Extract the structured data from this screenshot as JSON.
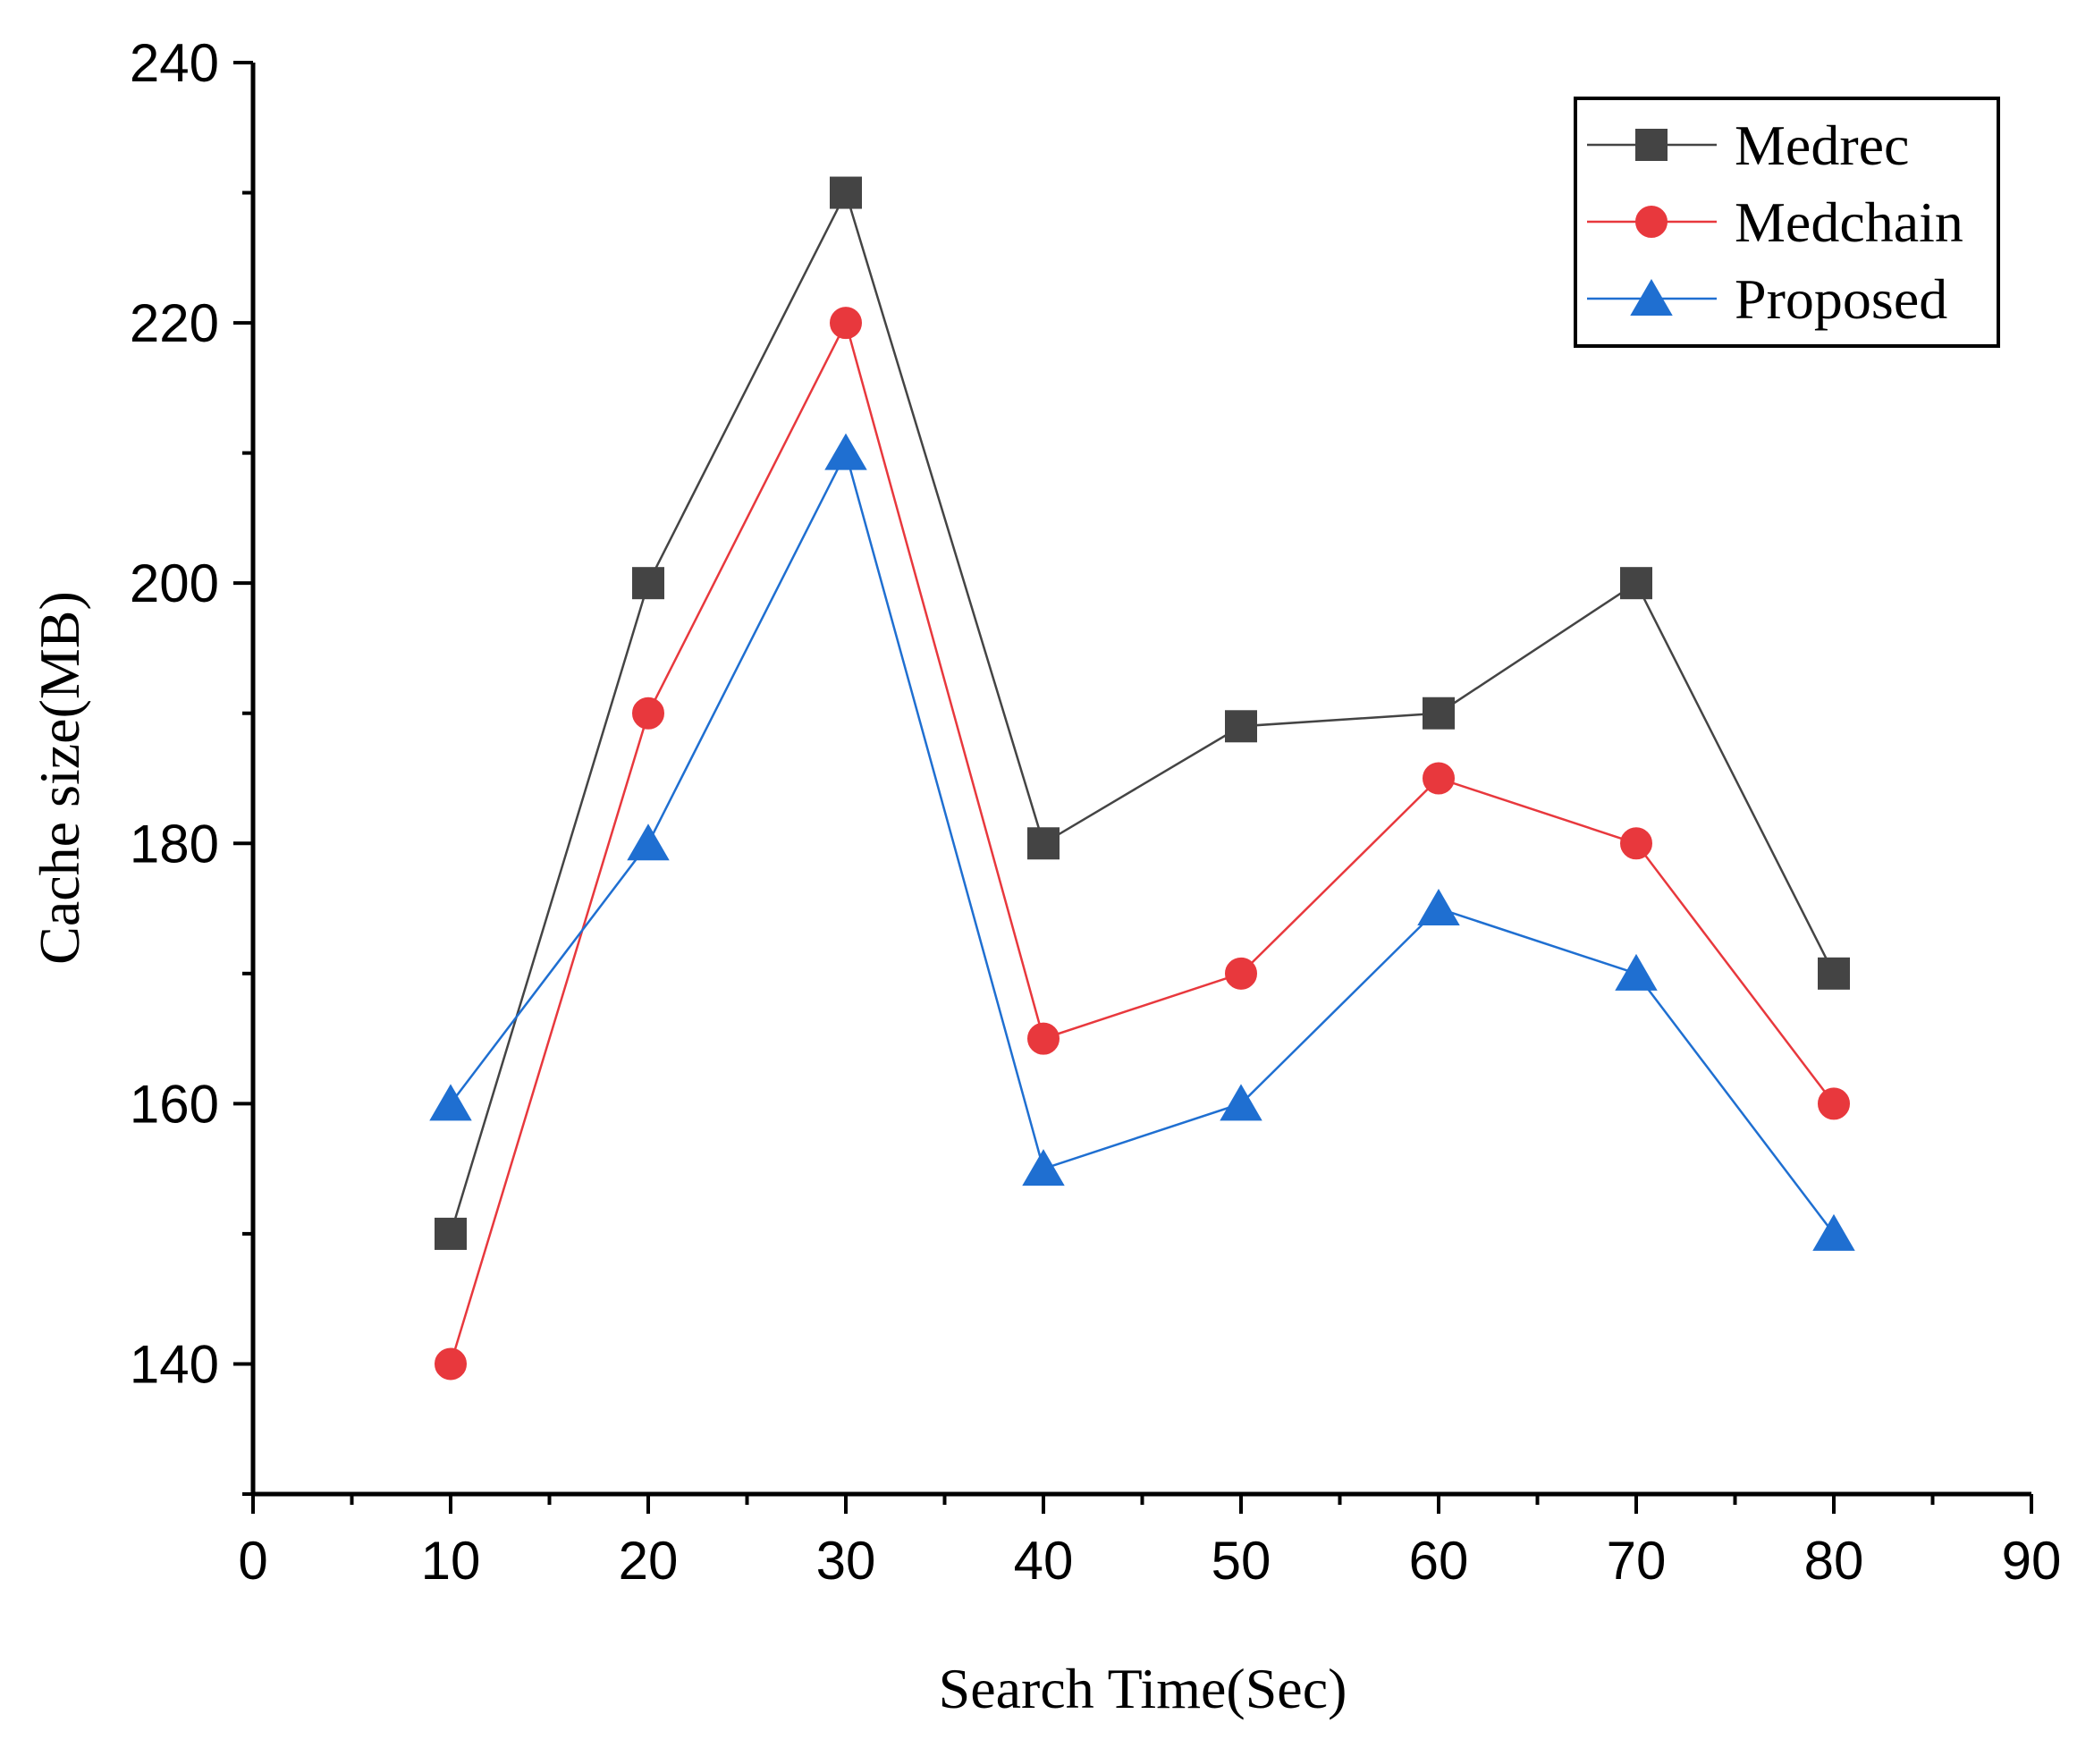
{
  "chart_data": {
    "type": "line",
    "title": "",
    "xlabel": "Search Time(Sec)",
    "ylabel": "Cache size(MB)",
    "xlim": [
      0,
      90
    ],
    "ylim": [
      130,
      240
    ],
    "x_ticks": [
      0,
      10,
      20,
      30,
      40,
      50,
      60,
      70,
      80,
      90
    ],
    "x_tick_labels": [
      "0",
      "10",
      "20",
      "30",
      "40",
      "50",
      "60",
      "70",
      "80",
      "90"
    ],
    "y_ticks": [
      140,
      160,
      180,
      200,
      220,
      240
    ],
    "y_tick_labels": [
      "140",
      "160",
      "180",
      "200",
      "220",
      "240"
    ],
    "x": [
      10,
      20,
      30,
      40,
      50,
      60,
      70,
      80
    ],
    "series": [
      {
        "name": "Medrec",
        "color": "#444444",
        "marker": "square",
        "values": [
          150,
          200,
          230,
          180,
          189,
          190,
          200,
          170
        ]
      },
      {
        "name": "Medchain",
        "color": "#e8383d",
        "marker": "circle",
        "values": [
          140,
          190,
          220,
          165,
          170,
          185,
          180,
          160
        ]
      },
      {
        "name": "Proposed",
        "color": "#1f6fd1",
        "marker": "triangle",
        "values": [
          160,
          180,
          210,
          155,
          160,
          175,
          170,
          150
        ]
      }
    ],
    "legend_position": "top-right",
    "grid": false
  }
}
